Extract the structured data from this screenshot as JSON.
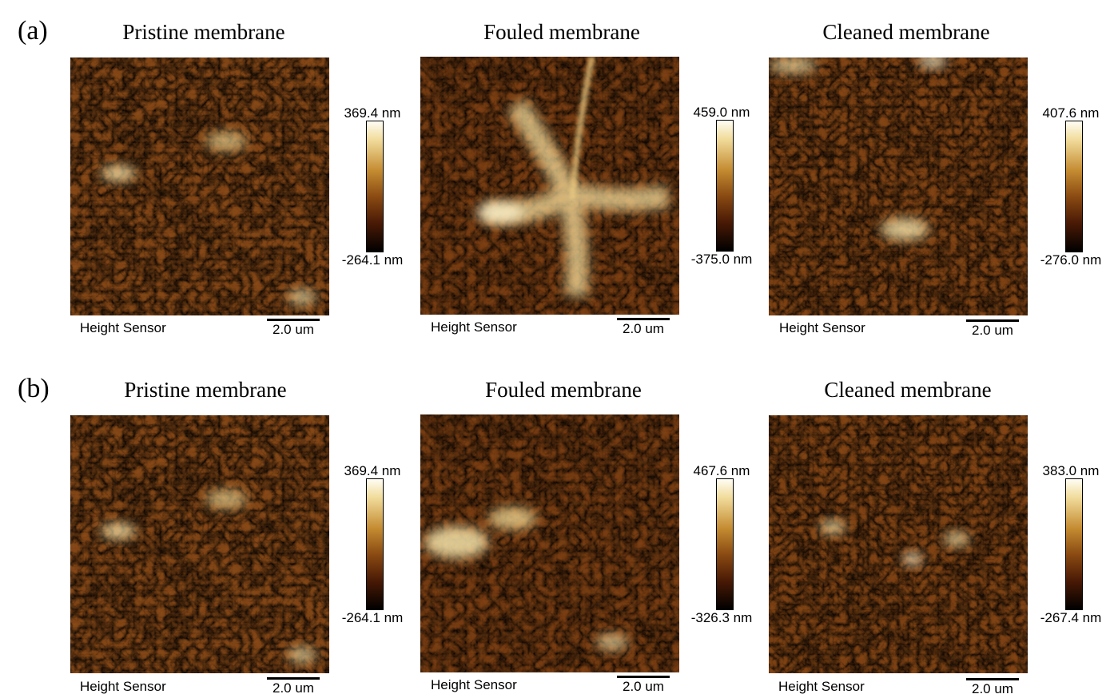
{
  "rows": [
    {
      "label": "(a)",
      "panels": [
        {
          "title": "Pristine membrane",
          "colorbar_max": "369.4 nm",
          "colorbar_min": "-264.1 nm",
          "sensor": "Height Sensor",
          "scalebar": "2.0 um"
        },
        {
          "title": "Fouled membrane",
          "colorbar_max": "459.0 nm",
          "colorbar_min": "-375.0 nm",
          "sensor": "Height Sensor",
          "scalebar": "2.0 um"
        },
        {
          "title": "Cleaned membrane",
          "colorbar_max": "407.6 nm",
          "colorbar_min": "-276.0 nm",
          "sensor": "Height Sensor",
          "scalebar": "2.0 um"
        }
      ]
    },
    {
      "label": "(b)",
      "panels": [
        {
          "title": "Pristine membrane",
          "colorbar_max": "369.4 nm",
          "colorbar_min": "-264.1 nm",
          "sensor": "Height Sensor",
          "scalebar": "2.0 um"
        },
        {
          "title": "Fouled membrane",
          "colorbar_max": "467.6 nm",
          "colorbar_min": "-326.3 nm",
          "sensor": "Height Sensor",
          "scalebar": "2.0 um"
        },
        {
          "title": "Cleaned membrane",
          "colorbar_max": "383.0 nm",
          "colorbar_min": "-267.4 nm",
          "sensor": "Height Sensor",
          "scalebar": "2.0 um"
        }
      ]
    }
  ]
}
